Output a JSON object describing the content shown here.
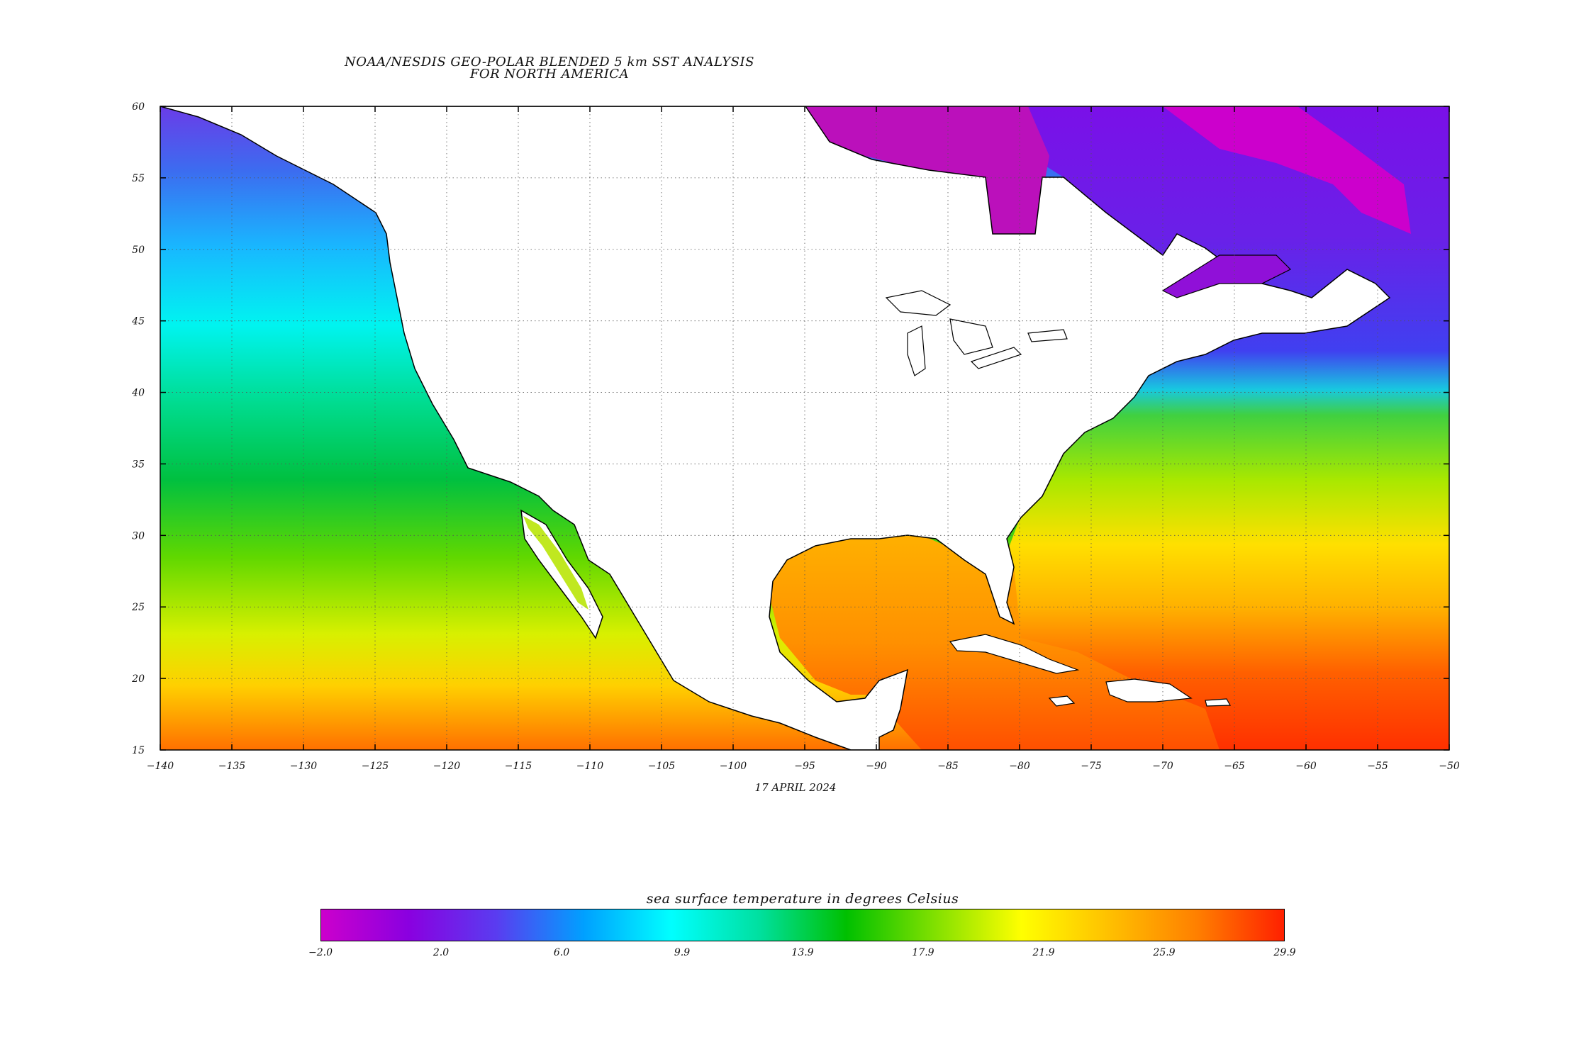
{
  "title_line1": "NOAA/NESDIS GEO-POLAR BLENDED 5 km SST ANALYSIS",
  "title_line2": "FOR NORTH AMERICA",
  "date": "17 APRIL 2024",
  "colorbar": {
    "title": "sea surface temperature in degrees Celsius",
    "labels": [
      "-2.0",
      "2.0",
      "6.0",
      "9.9",
      "13.9",
      "17.9",
      "21.9",
      "25.9",
      "29.9"
    ],
    "colors": [
      "#cc00cc",
      "#8a00e0",
      "#5a3cf0",
      "#00a0ff",
      "#00ffff",
      "#00e0a0",
      "#00c000",
      "#80e000",
      "#ffff00",
      "#ffc000",
      "#ff8000",
      "#ff2000"
    ]
  },
  "chart_data": {
    "type": "heatmap",
    "x_ticks": [
      "-140",
      "-135",
      "-130",
      "-125",
      "-120",
      "-115",
      "-110",
      "-105",
      "-100",
      "-95",
      "-90",
      "-85",
      "-80",
      "-75",
      "-70",
      "-65",
      "-60",
      "-55",
      "-50"
    ],
    "y_ticks": [
      "60",
      "55",
      "50",
      "45",
      "40",
      "35",
      "30",
      "25",
      "20",
      "15"
    ],
    "xlim": [
      -140,
      -50
    ],
    "ylim": [
      15,
      60
    ],
    "grid": true,
    "value_range": [
      -2.0,
      29.9
    ]
  }
}
